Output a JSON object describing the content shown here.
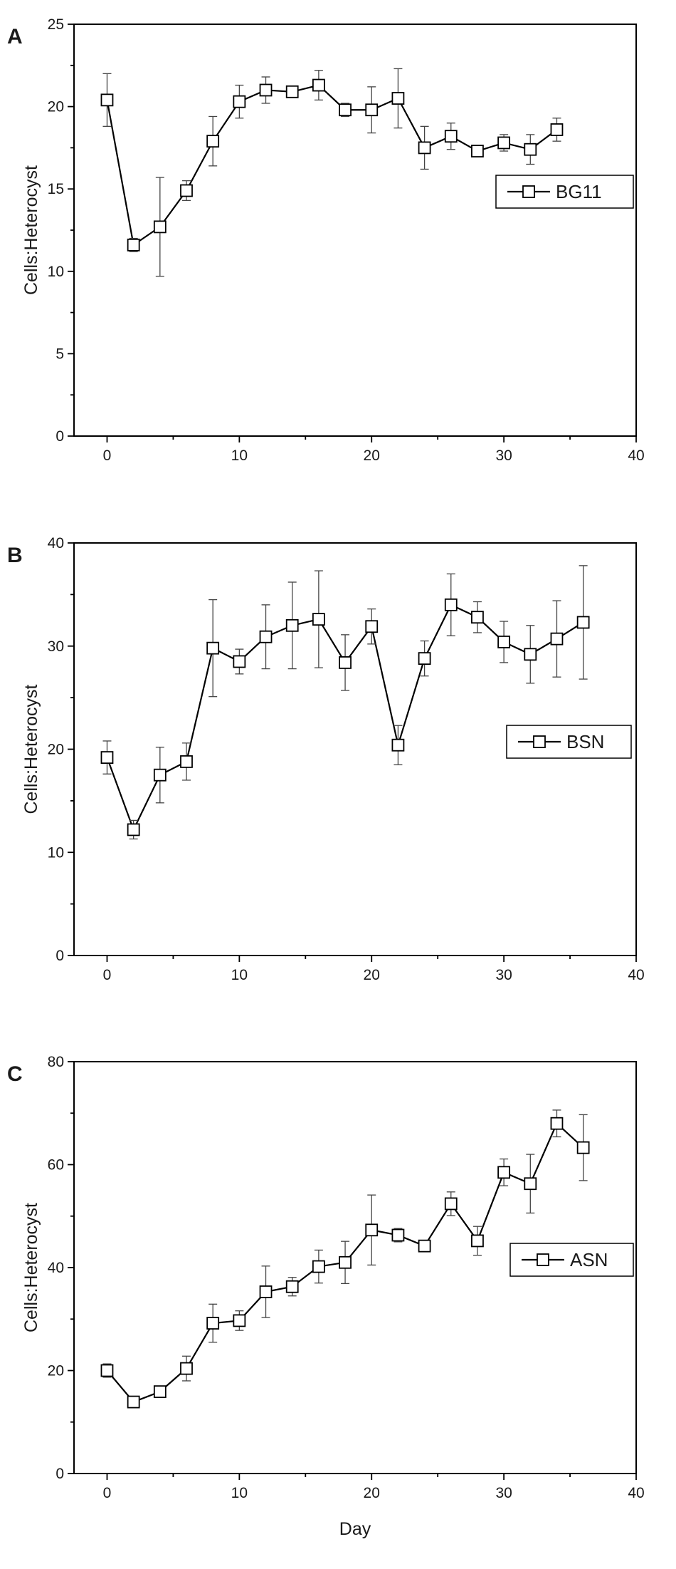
{
  "chart_data": [
    {
      "type": "line",
      "panel": "A",
      "xlabel": "",
      "ylabel": "Cells:Heterocyst",
      "xlim": [
        -2.5,
        40
      ],
      "ylim": [
        0,
        25
      ],
      "xticks": [
        0,
        10,
        20,
        30,
        40
      ],
      "yticks": [
        0,
        5,
        10,
        15,
        20,
        25
      ],
      "legend_position": "right",
      "series": [
        {
          "name": "BG11",
          "marker": "open-square",
          "x": [
            0,
            2,
            4,
            6,
            8,
            10,
            12,
            14,
            16,
            18,
            20,
            22,
            24,
            26,
            28,
            30,
            32,
            34
          ],
          "y": [
            20.4,
            11.6,
            12.7,
            14.9,
            17.9,
            20.3,
            21.0,
            20.9,
            21.3,
            19.8,
            19.8,
            20.5,
            17.5,
            18.2,
            17.3,
            17.8,
            17.4,
            18.6
          ],
          "err": [
            1.6,
            0.4,
            3.0,
            0.6,
            1.5,
            1.0,
            0.8,
            0.3,
            0.9,
            0.4,
            1.4,
            1.8,
            1.3,
            0.8,
            0.3,
            0.5,
            0.9,
            0.7
          ]
        }
      ]
    },
    {
      "type": "line",
      "panel": "B",
      "xlabel": "",
      "ylabel": "Cells:Heterocyst",
      "xlim": [
        -2.5,
        40
      ],
      "ylim": [
        0,
        40
      ],
      "xticks": [
        0,
        10,
        20,
        30,
        40
      ],
      "yticks": [
        0,
        10,
        20,
        30,
        40
      ],
      "legend_position": "right",
      "series": [
        {
          "name": "BSN",
          "marker": "open-square",
          "x": [
            0,
            2,
            4,
            6,
            8,
            10,
            12,
            14,
            16,
            18,
            20,
            22,
            24,
            26,
            28,
            30,
            32,
            34,
            36
          ],
          "y": [
            19.2,
            12.2,
            17.5,
            18.8,
            29.8,
            28.5,
            30.9,
            32.0,
            32.6,
            28.4,
            31.9,
            20.4,
            28.8,
            34.0,
            32.8,
            30.4,
            29.2,
            30.7,
            32.3
          ],
          "err": [
            1.6,
            0.9,
            2.7,
            1.8,
            4.7,
            1.2,
            3.1,
            4.2,
            4.7,
            2.7,
            1.7,
            1.9,
            1.7,
            3.0,
            1.5,
            2.0,
            2.8,
            3.7,
            5.5
          ]
        }
      ]
    },
    {
      "type": "line",
      "panel": "C",
      "xlabel": "Day",
      "ylabel": "Cells:Heterocyst",
      "xlim": [
        -2.5,
        40
      ],
      "ylim": [
        0,
        80
      ],
      "xticks": [
        0,
        10,
        20,
        30,
        40
      ],
      "yticks": [
        0,
        20,
        40,
        60,
        80
      ],
      "legend_position": "right",
      "series": [
        {
          "name": "ASN",
          "marker": "open-square",
          "x": [
            0,
            2,
            4,
            6,
            8,
            10,
            12,
            14,
            16,
            18,
            20,
            22,
            24,
            26,
            28,
            30,
            32,
            34,
            36
          ],
          "y": [
            20.0,
            13.9,
            15.9,
            20.4,
            29.2,
            29.7,
            35.3,
            36.3,
            40.2,
            41.0,
            47.3,
            46.3,
            44.2,
            52.4,
            45.2,
            58.5,
            56.3,
            68.0,
            63.3
          ],
          "err": [
            1.3,
            0.9,
            0.7,
            2.4,
            3.7,
            1.9,
            5.0,
            1.8,
            3.2,
            4.1,
            6.8,
            1.3,
            0.9,
            2.3,
            2.8,
            2.6,
            5.7,
            2.6,
            6.4
          ]
        }
      ]
    }
  ]
}
